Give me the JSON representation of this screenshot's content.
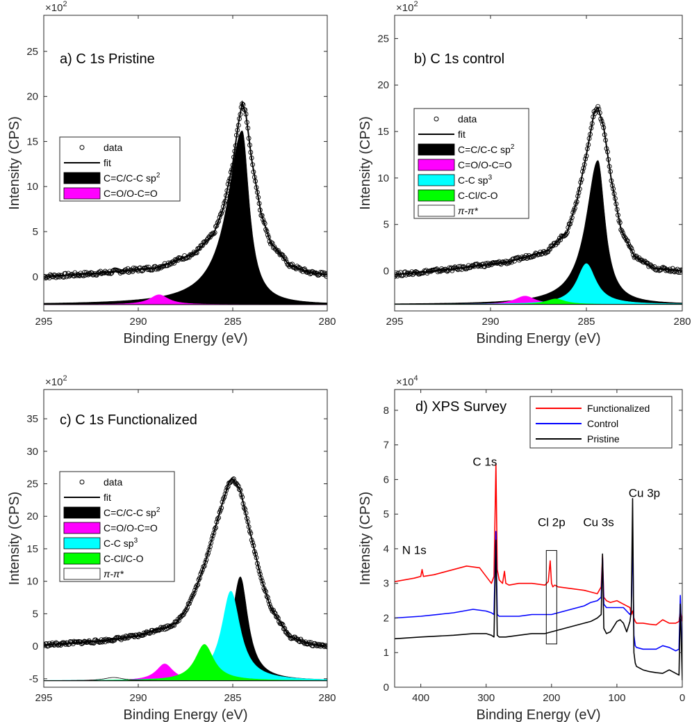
{
  "chart_data": [
    {
      "type": "line",
      "title": "a) C 1s Pristine",
      "xlabel": "Binding Energy (eV)",
      "ylabel": "Intensity (CPS)",
      "y_multiplier": "×10",
      "y_multiplier_exp": "2",
      "xlim": [
        295,
        280
      ],
      "ylim": [
        -3.8,
        29
      ],
      "x_reversed": true,
      "xticks": [
        295,
        290,
        285,
        280
      ],
      "yticks": [
        0,
        5,
        10,
        15,
        20,
        25
      ],
      "baseline": -3.1,
      "data": {
        "name": "data",
        "marker": "circle",
        "left_level": 0.1,
        "left_slope": 0.09,
        "noise": 0.22,
        "x": [
          295,
          292,
          289,
          287,
          286,
          285.5,
          285,
          284.7,
          284.5,
          284.3,
          284,
          283.5,
          283,
          282,
          281,
          280
        ],
        "y": [
          0.0,
          0.4,
          1.0,
          2.6,
          4.8,
          7.6,
          12.5,
          17.0,
          19.3,
          18.0,
          13.0,
          7.0,
          3.8,
          1.3,
          0.5,
          0.2
        ]
      },
      "fit": {
        "name": "fit"
      },
      "components": [
        {
          "name": "C=C/C-C sp",
          "sup": "2",
          "color": "#000000",
          "center": 284.5,
          "height": 19.3,
          "wl": 0.95,
          "wr": 0.45,
          "fill": true
        },
        {
          "name": "C=O/O-C=O",
          "sup": "",
          "color": "#ff00ff",
          "center": 288.9,
          "height": 1.1,
          "wl": 0.6,
          "wr": 0.6,
          "fill": true
        }
      ]
    },
    {
      "type": "line",
      "title": "b) C 1s control",
      "xlabel": "Binding Energy (eV)",
      "ylabel": "Intensity (CPS)",
      "y_multiplier": "×10",
      "y_multiplier_exp": "2",
      "xlim": [
        295,
        280
      ],
      "ylim": [
        -4.3,
        27.5
      ],
      "x_reversed": true,
      "xticks": [
        295,
        290,
        285,
        280
      ],
      "yticks": [
        0,
        5,
        10,
        15,
        20,
        25
      ],
      "baseline": -3.6,
      "data": {
        "name": "data",
        "marker": "circle",
        "left_level": -0.4,
        "left_slope": 0.1,
        "noise": 0.2,
        "x": [
          295,
          292,
          289,
          287,
          286,
          285.5,
          285,
          284.6,
          284.4,
          284.1,
          283.7,
          283.2,
          282.5,
          281.5,
          280
        ],
        "y": [
          -0.4,
          0.2,
          1.0,
          2.2,
          4.2,
          7.5,
          12.5,
          17.0,
          17.6,
          15.5,
          9.8,
          4.5,
          1.6,
          0.3,
          0.0
        ]
      },
      "fit": {
        "name": "fit"
      },
      "components": [
        {
          "name": "C=C/C-C sp",
          "sup": "2",
          "color": "#000000",
          "center": 284.4,
          "height": 15.5,
          "wl": 0.75,
          "wr": 0.45,
          "fill": true
        },
        {
          "name": "C=O/O-C=O",
          "sup": "",
          "color": "#ff00ff",
          "center": 288.2,
          "height": 0.9,
          "wl": 0.65,
          "wr": 0.65,
          "fill": true
        },
        {
          "name": "C-C sp",
          "sup": "3",
          "color": "#00ffff",
          "center": 285.0,
          "height": 4.4,
          "wl": 0.6,
          "wr": 0.6,
          "fill": true
        },
        {
          "name": "C-Cl/C-O",
          "sup": "",
          "color": "#00ff00",
          "center": 286.6,
          "height": 0.6,
          "wl": 0.6,
          "wr": 0.6,
          "fill": true
        },
        {
          "name": "π-π*",
          "sup": "",
          "color": "#ffffff",
          "italic": true,
          "center": 291.0,
          "height": 0.0,
          "wl": 0.6,
          "wr": 0.6,
          "fill": false
        }
      ]
    },
    {
      "type": "line",
      "title": "c) C 1s Functionalized",
      "xlabel": "Binding Energy (eV)",
      "ylabel": "Intensity (CPS)",
      "y_multiplier": "×10",
      "y_multiplier_exp": "2",
      "xlim": [
        295,
        280
      ],
      "ylim": [
        -6.3,
        39.5
      ],
      "x_reversed": true,
      "xticks": [
        295,
        290,
        285,
        280
      ],
      "yticks": [
        -5,
        0,
        5,
        10,
        15,
        20,
        25,
        30,
        35
      ],
      "baseline": -5.3,
      "data": {
        "name": "data",
        "marker": "circle",
        "left_level": 0.2,
        "left_slope": 0.1,
        "noise": 0.25,
        "x": [
          295,
          292,
          290,
          289,
          288.5,
          288,
          287.5,
          287,
          286.5,
          286,
          285.5,
          285.2,
          285,
          284.6,
          284.2,
          283.5,
          283,
          282,
          281,
          280
        ],
        "y": [
          0.2,
          0.8,
          1.6,
          2.6,
          2.9,
          3.6,
          5.5,
          8.5,
          12.5,
          17.5,
          22.5,
          25.2,
          25.8,
          24.0,
          19.0,
          10.5,
          6.0,
          1.5,
          0.4,
          0.0
        ]
      },
      "fit": {
        "name": "fit"
      },
      "components": [
        {
          "name": "C=C/C-C sp",
          "sup": "2",
          "color": "#000000",
          "center": 284.6,
          "height": 16.0,
          "wl": 0.55,
          "wr": 0.5,
          "fill": true
        },
        {
          "name": "C=O/O-C=O",
          "sup": "",
          "color": "#ff00ff",
          "center": 288.6,
          "height": 2.6,
          "wl": 0.55,
          "wr": 0.55,
          "fill": true
        },
        {
          "name": "C-C sp",
          "sup": "3",
          "color": "#00ffff",
          "center": 285.1,
          "height": 13.8,
          "wl": 0.6,
          "wr": 0.6,
          "fill": true
        },
        {
          "name": "C-Cl/C-O",
          "sup": "",
          "color": "#00ff00",
          "center": 286.5,
          "height": 5.6,
          "wl": 0.6,
          "wr": 0.6,
          "fill": true
        },
        {
          "name": "π-π*",
          "sup": "",
          "color": "#ffffff",
          "italic": true,
          "center": 291.3,
          "height": 0.5,
          "wl": 0.6,
          "wr": 0.6,
          "fill": false
        }
      ]
    },
    {
      "type": "line",
      "title": "d) XPS Survey",
      "xlabel": "Binding Energy (eV)",
      "ylabel": "Intensity (CPS)",
      "y_multiplier": "×10",
      "y_multiplier_exp": "4",
      "xlim": [
        440,
        0
      ],
      "ylim": [
        0,
        8.6
      ],
      "x_reversed": true,
      "xticks": [
        400,
        300,
        200,
        100,
        0
      ],
      "yticks": [
        0,
        1,
        2,
        3,
        4,
        5,
        6,
        7,
        8
      ],
      "series": [
        {
          "name": "Functionalized",
          "color": "#ff0000",
          "x": [
            440,
            410,
            400,
            398,
            396,
            380,
            350,
            330,
            310,
            300,
            292,
            288,
            285,
            283,
            280,
            275,
            272,
            270,
            265,
            250,
            230,
            210,
            205,
            202,
            200,
            198,
            195,
            190,
            170,
            150,
            140,
            130,
            124,
            122,
            120,
            116,
            110,
            100,
            90,
            80,
            78,
            76,
            74,
            72,
            70,
            60,
            50,
            40,
            30,
            20,
            10,
            5,
            3,
            1,
            0
          ],
          "y": [
            3.05,
            3.15,
            3.2,
            3.4,
            3.2,
            3.25,
            3.4,
            3.5,
            3.45,
            3.2,
            3.0,
            3.2,
            6.45,
            3.4,
            3.1,
            3.0,
            3.35,
            3.0,
            2.95,
            3.0,
            3.0,
            2.95,
            3.05,
            3.65,
            3.0,
            2.9,
            2.95,
            2.9,
            2.85,
            2.8,
            2.75,
            2.7,
            2.9,
            3.8,
            2.6,
            2.5,
            2.45,
            2.5,
            2.4,
            2.3,
            2.1,
            2.2,
            2.0,
            1.9,
            1.85,
            1.85,
            1.82,
            1.8,
            1.95,
            1.85,
            1.85,
            1.9,
            2.2,
            2.0,
            1.9
          ]
        },
        {
          "name": "Control",
          "color": "#0000ff",
          "x": [
            440,
            400,
            350,
            320,
            300,
            292,
            288,
            285,
            283,
            280,
            270,
            250,
            230,
            210,
            200,
            190,
            170,
            150,
            140,
            130,
            124,
            122,
            120,
            116,
            110,
            100,
            90,
            80,
            78,
            76,
            74,
            72,
            70,
            60,
            50,
            40,
            30,
            20,
            10,
            5,
            3,
            1,
            0
          ],
          "y": [
            2.0,
            2.05,
            2.15,
            2.25,
            2.2,
            2.15,
            2.1,
            4.5,
            2.1,
            2.05,
            2.05,
            2.05,
            2.1,
            2.1,
            2.1,
            2.15,
            2.25,
            2.35,
            2.45,
            2.5,
            2.6,
            3.75,
            2.4,
            2.3,
            2.3,
            2.3,
            2.3,
            2.1,
            2.2,
            4.4,
            1.5,
            1.2,
            1.15,
            1.1,
            1.1,
            1.1,
            1.2,
            1.15,
            1.05,
            1.1,
            2.65,
            1.3,
            0.95
          ]
        },
        {
          "name": "Pristine",
          "color": "#000000",
          "x": [
            440,
            400,
            350,
            320,
            300,
            292,
            288,
            285,
            283,
            280,
            270,
            250,
            230,
            210,
            200,
            190,
            170,
            150,
            140,
            130,
            124,
            122,
            120,
            116,
            110,
            100,
            95,
            90,
            85,
            80,
            78,
            76,
            74,
            72,
            70,
            60,
            50,
            40,
            30,
            20,
            10,
            5,
            3,
            1,
            0
          ],
          "y": [
            1.4,
            1.45,
            1.5,
            1.55,
            1.55,
            1.5,
            1.45,
            4.25,
            1.5,
            1.45,
            1.45,
            1.5,
            1.55,
            1.55,
            1.6,
            1.65,
            1.75,
            1.85,
            1.9,
            2.0,
            2.1,
            3.85,
            1.7,
            1.55,
            1.6,
            1.9,
            1.95,
            1.85,
            1.6,
            1.9,
            2.2,
            5.45,
            1.0,
            0.7,
            0.6,
            0.5,
            0.45,
            0.42,
            0.4,
            0.5,
            0.4,
            0.35,
            2.4,
            0.9,
            0.2
          ]
        }
      ],
      "annotations": [
        {
          "text": "N 1s",
          "x": 410,
          "y": 3.85
        },
        {
          "text": "C 1s",
          "x": 302,
          "y": 6.4
        },
        {
          "text": "Cl 2p",
          "x": 200,
          "y": 4.65
        },
        {
          "text": "Cu 3s",
          "x": 128,
          "y": 4.65
        },
        {
          "text": "Cu 3p",
          "x": 58,
          "y": 5.5
        }
      ],
      "highlight_box": {
        "x": [
          208,
          192
        ],
        "y": [
          1.25,
          3.95
        ]
      }
    }
  ]
}
